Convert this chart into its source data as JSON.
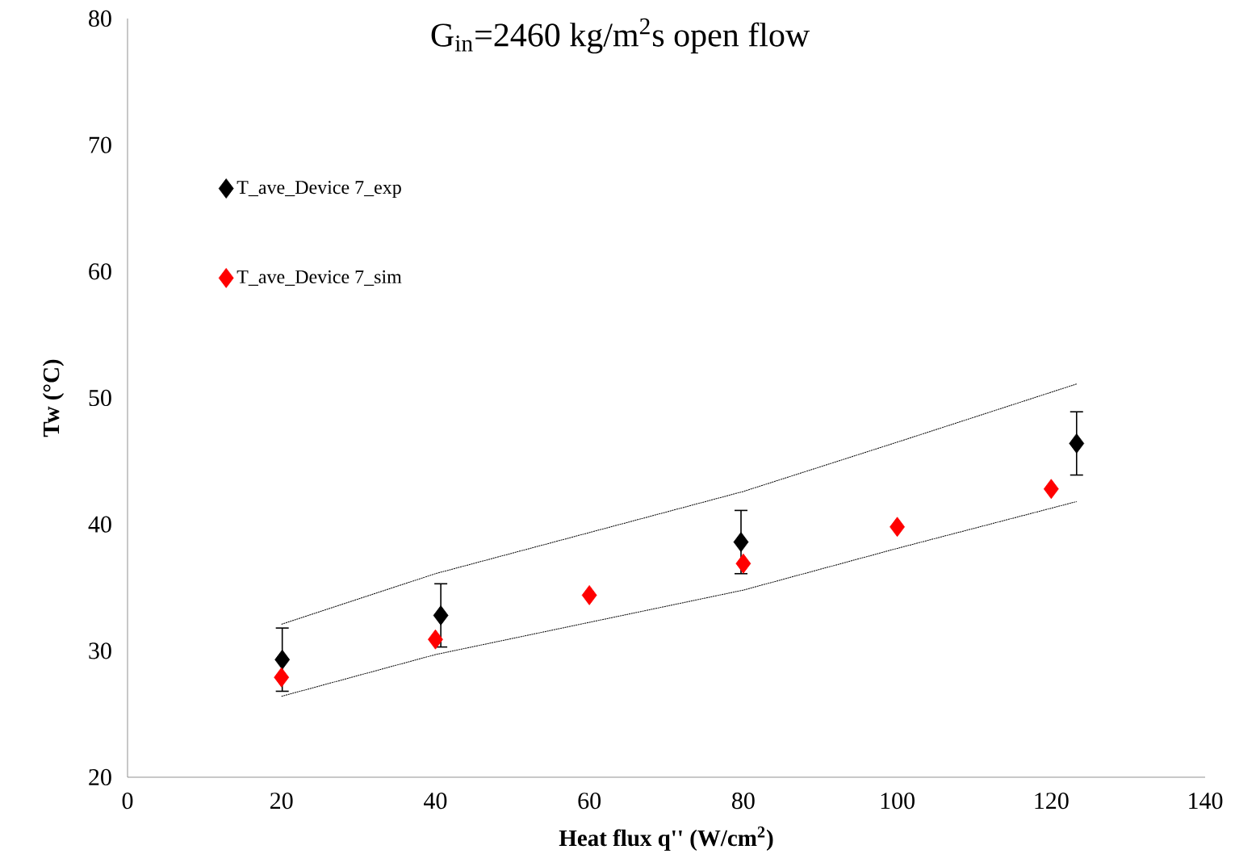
{
  "chart_data": {
    "type": "scatter",
    "title": "G$_{in}$=2460 kg/m$^{2}$s  open flow",
    "xlabel": "Heat flux q'' (W/cm$^{2}$)",
    "ylabel": "Tw (°C)",
    "xlim": [
      0,
      140
    ],
    "ylim": [
      20,
      80
    ],
    "xticks": [
      0,
      20,
      40,
      60,
      80,
      100,
      120,
      140
    ],
    "yticks": [
      20,
      30,
      40,
      50,
      60,
      70,
      80
    ],
    "grid": false,
    "legend": "top left",
    "marker": "diamond",
    "series": [
      {
        "name": "T_ave_Device 7_exp",
        "color": "#000000",
        "x": [
          20.1,
          40.7,
          79.7,
          123.3
        ],
        "values": [
          29.3,
          32.8,
          38.6,
          46.4
        ],
        "errors": [
          2.5,
          2.5,
          2.5,
          2.5
        ]
      },
      {
        "name": "T_ave_Device 7_sim",
        "color": "#ff0000",
        "x": [
          20,
          40,
          60,
          80,
          100,
          120
        ],
        "values": [
          27.9,
          30.9,
          34.4,
          36.9,
          39.8,
          42.8
        ]
      },
      {
        "type": "line",
        "color": "#000000",
        "marker": "none",
        "line_style": "dotted",
        "x": [
          20,
          40,
          80,
          100,
          123.3
        ],
        "values": [
          32.1,
          36.1,
          42.6,
          46.5,
          51.1
        ]
      },
      {
        "type": "line",
        "color": "#000000",
        "marker": "none",
        "line_style": "dotted",
        "x": [
          20,
          40,
          80,
          100,
          123.3
        ],
        "values": [
          26.4,
          29.7,
          34.8,
          38.1,
          41.8
        ]
      }
    ]
  }
}
